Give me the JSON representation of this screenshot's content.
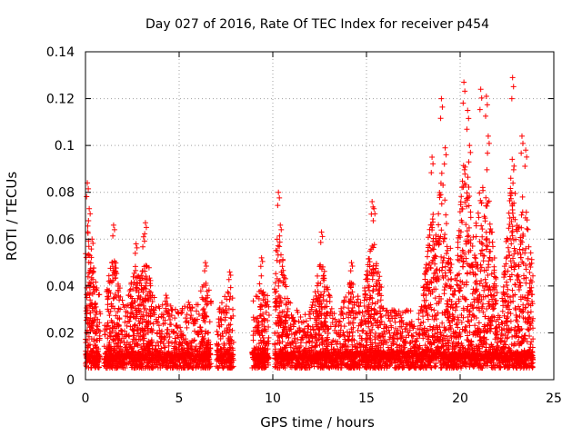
{
  "chart_data": {
    "type": "scatter",
    "title": "Day 027 of 2016, Rate Of TEC Index for receiver p454",
    "xlabel": "GPS time / hours",
    "ylabel": "ROTI / TECUs",
    "xlim": [
      0,
      25
    ],
    "ylim": [
      0,
      0.14
    ],
    "x_ticks": [
      0,
      5,
      10,
      15,
      20,
      25
    ],
    "x_tick_labels": [
      "0",
      "5",
      "10",
      "15",
      "20",
      "25"
    ],
    "y_ticks": [
      0,
      0.02,
      0.04,
      0.06,
      0.08,
      0.1,
      0.12,
      0.14
    ],
    "y_tick_labels": [
      "0",
      "0.02",
      "0.04",
      "0.06",
      "0.08",
      "0.1",
      "0.12",
      "0.14"
    ],
    "grid": true,
    "marker": "+",
    "series": [
      {
        "name": "ROTI",
        "color": "#ff0000",
        "coverage_intervals_hours": [
          [
            0,
            0.8
          ],
          [
            1.0,
            6.7
          ],
          [
            7.0,
            7.9
          ],
          [
            8.9,
            9.8
          ],
          [
            10.1,
            23.9
          ]
        ],
        "typical_range": [
          0.005,
          0.03
        ],
        "baseline_level": 0.01,
        "peaks": [
          {
            "x": 0.1,
            "y": 0.084
          },
          {
            "x": 0.2,
            "y": 0.073
          },
          {
            "x": 0.35,
            "y": 0.06
          },
          {
            "x": 1.5,
            "y": 0.066
          },
          {
            "x": 2.7,
            "y": 0.058
          },
          {
            "x": 3.1,
            "y": 0.061
          },
          {
            "x": 3.2,
            "y": 0.067
          },
          {
            "x": 4.3,
            "y": 0.036
          },
          {
            "x": 5.5,
            "y": 0.033
          },
          {
            "x": 6.4,
            "y": 0.05
          },
          {
            "x": 7.7,
            "y": 0.046
          },
          {
            "x": 9.4,
            "y": 0.052
          },
          {
            "x": 10.3,
            "y": 0.08
          },
          {
            "x": 10.4,
            "y": 0.066
          },
          {
            "x": 12.6,
            "y": 0.063
          },
          {
            "x": 14.2,
            "y": 0.05
          },
          {
            "x": 15.3,
            "y": 0.076
          },
          {
            "x": 15.4,
            "y": 0.073
          },
          {
            "x": 18.5,
            "y": 0.095
          },
          {
            "x": 19.0,
            "y": 0.12
          },
          {
            "x": 19.2,
            "y": 0.099
          },
          {
            "x": 20.2,
            "y": 0.127
          },
          {
            "x": 20.4,
            "y": 0.115
          },
          {
            "x": 20.5,
            "y": 0.1
          },
          {
            "x": 21.1,
            "y": 0.124
          },
          {
            "x": 21.4,
            "y": 0.121
          },
          {
            "x": 21.5,
            "y": 0.104
          },
          {
            "x": 22.8,
            "y": 0.129
          },
          {
            "x": 23.3,
            "y": 0.104
          },
          {
            "x": 23.5,
            "y": 0.098
          }
        ]
      }
    ]
  }
}
